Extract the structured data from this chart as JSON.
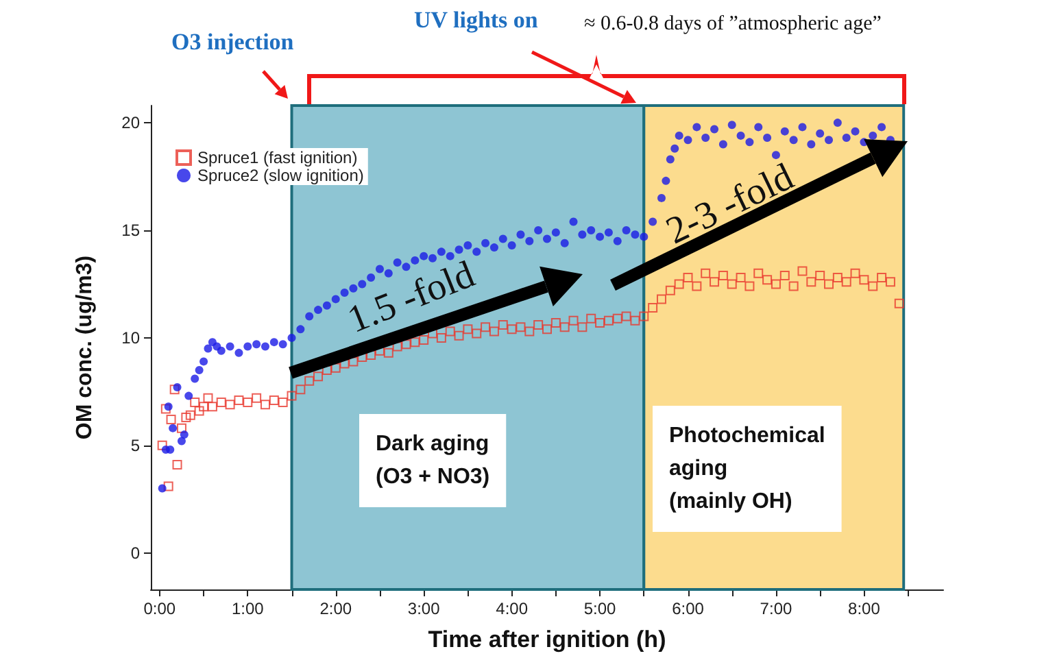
{
  "chart_data": {
    "type": "scatter",
    "xlabel": "Time after ignition (h)",
    "ylabel": "OM conc. (ug/m3)",
    "xlim": [
      -0.1,
      8.9
    ],
    "ylim": [
      -1.7,
      20.8
    ],
    "xticks": [
      {
        "value": 0,
        "label": "0:00"
      },
      {
        "value": 0.5,
        "label": null
      },
      {
        "value": 1,
        "label": "1:00"
      },
      {
        "value": 1.5,
        "label": null
      },
      {
        "value": 2,
        "label": "2:00"
      },
      {
        "value": 2.5,
        "label": null
      },
      {
        "value": 3,
        "label": "3:00"
      },
      {
        "value": 3.5,
        "label": null
      },
      {
        "value": 4,
        "label": "4:00"
      },
      {
        "value": 4.5,
        "label": null
      },
      {
        "value": 5,
        "label": "5:00"
      },
      {
        "value": 5.5,
        "label": null
      },
      {
        "value": 6,
        "label": "6:00"
      },
      {
        "value": 6.5,
        "label": null
      },
      {
        "value": 7,
        "label": "7:00"
      },
      {
        "value": 7.5,
        "label": null
      },
      {
        "value": 8,
        "label": "8:00"
      },
      {
        "value": 8.5,
        "label": null
      }
    ],
    "yticks": [
      0,
      5,
      10,
      15,
      20
    ],
    "grid": false,
    "legend": "top left",
    "bands": [
      {
        "axis": "x",
        "from": 1.5,
        "to": 5.5,
        "label": "Dark aging\n(O3 + NO3)",
        "color": "#8ec5d3"
      },
      {
        "axis": "x",
        "from": 5.5,
        "to": 8.45,
        "label": "Photochemical\naging\n(mainly OH)",
        "color": "#fcdc8e"
      }
    ],
    "annotations": [
      "O3 injection",
      "UV lights on",
      "≈ 0.6-0.8 days of ”atmospheric age”",
      "1.5 -fold",
      "2-3 -fold"
    ],
    "series": [
      {
        "name": "Spruce1 (fast ignition)",
        "color": "#e8382e",
        "marker": "square",
        "x": [
          0.03,
          0.07,
          0.1,
          0.13,
          0.17,
          0.2,
          0.25,
          0.3,
          0.35,
          0.4,
          0.45,
          0.5,
          0.55,
          0.6,
          0.7,
          0.8,
          0.9,
          1.0,
          1.1,
          1.2,
          1.3,
          1.4,
          1.5,
          1.6,
          1.7,
          1.8,
          1.9,
          2.0,
          2.1,
          2.2,
          2.3,
          2.4,
          2.5,
          2.6,
          2.7,
          2.8,
          2.9,
          3.0,
          3.1,
          3.2,
          3.3,
          3.4,
          3.5,
          3.6,
          3.7,
          3.8,
          3.9,
          4.0,
          4.1,
          4.2,
          4.3,
          4.4,
          4.5,
          4.6,
          4.7,
          4.8,
          4.9,
          5.0,
          5.1,
          5.2,
          5.3,
          5.4,
          5.5,
          5.6,
          5.7,
          5.8,
          5.9,
          6.0,
          6.1,
          6.2,
          6.3,
          6.4,
          6.5,
          6.6,
          6.7,
          6.8,
          6.9,
          7.0,
          7.1,
          7.2,
          7.3,
          7.4,
          7.5,
          7.6,
          7.7,
          7.8,
          7.9,
          8.0,
          8.1,
          8.2,
          8.3,
          8.4
        ],
        "values": [
          5.0,
          6.7,
          3.1,
          6.2,
          7.6,
          4.1,
          5.8,
          6.3,
          6.4,
          7.0,
          6.6,
          6.8,
          7.2,
          6.8,
          7.0,
          6.9,
          7.1,
          7.0,
          7.2,
          6.9,
          7.1,
          7.0,
          7.3,
          7.6,
          8.0,
          8.2,
          8.5,
          8.6,
          8.8,
          8.9,
          9.1,
          9.2,
          9.4,
          9.3,
          9.6,
          9.7,
          9.8,
          9.9,
          10.2,
          10.0,
          10.3,
          10.1,
          10.4,
          10.2,
          10.5,
          10.3,
          10.6,
          10.4,
          10.5,
          10.3,
          10.6,
          10.4,
          10.7,
          10.5,
          10.8,
          10.5,
          10.9,
          10.7,
          10.8,
          10.9,
          11.0,
          10.8,
          11.0,
          11.4,
          11.8,
          12.2,
          12.5,
          12.8,
          12.4,
          13.0,
          12.6,
          12.9,
          12.5,
          12.8,
          12.4,
          13.0,
          12.7,
          12.5,
          12.9,
          12.4,
          13.1,
          12.6,
          12.9,
          12.5,
          12.8,
          12.6,
          13.0,
          12.7,
          12.4,
          12.8,
          12.6,
          11.6
        ]
      },
      {
        "name": "Spruce2 (slow ignition)",
        "color": "#1a1ae6",
        "marker": "circle",
        "x": [
          0.03,
          0.07,
          0.1,
          0.12,
          0.15,
          0.2,
          0.25,
          0.28,
          0.33,
          0.4,
          0.45,
          0.5,
          0.55,
          0.6,
          0.65,
          0.7,
          0.8,
          0.9,
          1.0,
          1.1,
          1.2,
          1.3,
          1.4,
          1.5,
          1.6,
          1.7,
          1.8,
          1.9,
          2.0,
          2.1,
          2.2,
          2.3,
          2.4,
          2.5,
          2.6,
          2.7,
          2.8,
          2.9,
          3.0,
          3.1,
          3.2,
          3.3,
          3.4,
          3.5,
          3.6,
          3.7,
          3.8,
          3.9,
          4.0,
          4.1,
          4.2,
          4.3,
          4.4,
          4.5,
          4.6,
          4.7,
          4.8,
          4.9,
          5.0,
          5.1,
          5.2,
          5.3,
          5.4,
          5.5,
          5.6,
          5.7,
          5.75,
          5.8,
          5.85,
          5.9,
          6.0,
          6.1,
          6.2,
          6.3,
          6.4,
          6.5,
          6.6,
          6.7,
          6.8,
          6.9,
          7.0,
          7.1,
          7.2,
          7.3,
          7.4,
          7.5,
          7.6,
          7.7,
          7.8,
          7.9,
          8.0,
          8.1,
          8.2,
          8.3
        ],
        "values": [
          3.0,
          4.8,
          6.8,
          4.8,
          5.8,
          7.7,
          5.2,
          5.5,
          7.3,
          8.1,
          8.5,
          8.9,
          9.5,
          9.8,
          9.6,
          9.4,
          9.6,
          9.3,
          9.6,
          9.7,
          9.6,
          9.8,
          9.7,
          10.0,
          10.4,
          11.0,
          11.3,
          11.5,
          11.8,
          12.1,
          12.3,
          12.5,
          12.8,
          13.2,
          13.0,
          13.5,
          13.3,
          13.6,
          13.8,
          13.7,
          14.0,
          13.8,
          14.1,
          14.3,
          14.0,
          14.4,
          14.2,
          14.6,
          14.3,
          14.8,
          14.5,
          15.0,
          14.6,
          14.9,
          14.4,
          15.4,
          14.8,
          15.0,
          14.7,
          14.9,
          14.5,
          15.0,
          14.8,
          14.7,
          15.4,
          16.5,
          17.3,
          18.3,
          18.8,
          19.4,
          19.2,
          19.8,
          19.3,
          19.7,
          19.0,
          19.9,
          19.4,
          19.1,
          19.8,
          19.3,
          18.5,
          19.6,
          19.2,
          19.8,
          19.0,
          19.5,
          19.2,
          20.0,
          19.3,
          19.6,
          19.1,
          19.4,
          19.8,
          19.2
        ]
      }
    ]
  }
}
